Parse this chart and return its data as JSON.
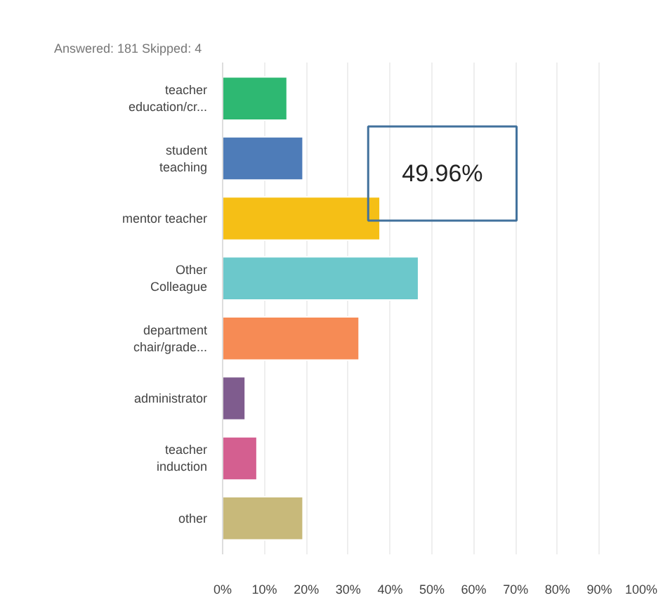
{
  "chart_data": {
    "type": "bar",
    "orientation": "horizontal",
    "subtitle": "Answered: 181    Skipped: 4",
    "categories": [
      "teacher education/cr...",
      "student teaching",
      "mentor teacher",
      "Other Colleague",
      "department chair/grade...",
      "administrator",
      "teacher induction",
      "other"
    ],
    "values": [
      15.4,
      19.2,
      37.6,
      46.8,
      32.6,
      5.4,
      8.2,
      19.2
    ],
    "colors": [
      "#2eb872",
      "#4e7cb8",
      "#f5bf16",
      "#6cc8cb",
      "#f68b55",
      "#7f5c8e",
      "#d45f90",
      "#c8b97a"
    ],
    "xlim": [
      0,
      100
    ],
    "xticks": [
      {
        "value": 0,
        "label": "0%"
      },
      {
        "value": 10,
        "label": "10%"
      },
      {
        "value": 20,
        "label": "20%"
      },
      {
        "value": 30,
        "label": "30%"
      },
      {
        "value": 40,
        "label": "40%"
      },
      {
        "value": 50,
        "label": "50%"
      },
      {
        "value": 60,
        "label": "60%"
      },
      {
        "value": 70,
        "label": "70%"
      },
      {
        "value": 80,
        "label": "80%"
      },
      {
        "value": 90,
        "label": "90%"
      },
      {
        "value": 100,
        "label": "100%"
      }
    ],
    "grid": "x",
    "annotations": [
      "49.96%"
    ]
  }
}
